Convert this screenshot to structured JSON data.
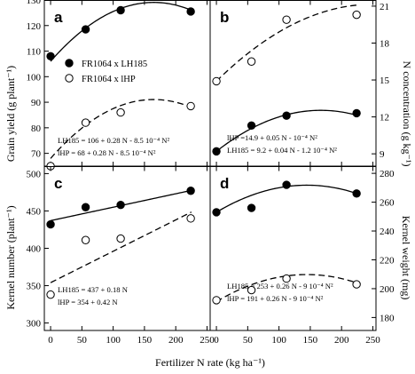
{
  "x_axis_title": "Fertilizer N rate (kg ha⁻¹)",
  "x_ticks": [
    0,
    50,
    100,
    150,
    200,
    250
  ],
  "y_left_top_title": "Grain yield (g plant⁻¹)",
  "y_right_top_title": "N concentration (g kg⁻¹)",
  "y_left_bottom_title": "Kernel number (plant⁻¹)",
  "y_right_bottom_title": "Kernel weight (mg)",
  "legend": [
    {
      "label": "FR1064 x LH185",
      "marker": "filled"
    },
    {
      "label": "FR1064 x lHP",
      "marker": "open"
    }
  ],
  "colors": {
    "filled": "#000000",
    "open": "#ffffff",
    "line": "#000000"
  },
  "chart_data": [
    {
      "type": "scatter",
      "panel": "a",
      "xlim": [
        -10,
        255
      ],
      "ylim": [
        65,
        130
      ],
      "y_ticks": [
        70,
        80,
        90,
        100,
        110,
        120,
        130
      ],
      "x": [
        0,
        56,
        112,
        224
      ],
      "series": [
        {
          "name": "FR1064 x LH185",
          "marker": "filled",
          "line": "solid",
          "values": [
            108,
            118.5,
            126,
            125.5
          ]
        },
        {
          "name": "FR1064 x lHP",
          "marker": "open",
          "line": "dashed",
          "values": [
            65,
            82,
            86,
            88.5
          ]
        }
      ],
      "fits": [
        {
          "series": "FR1064 x LH185",
          "a": 106,
          "b": 0.28,
          "c": -0.00085
        },
        {
          "series": "FR1064 x lHP",
          "a": 68,
          "b": 0.28,
          "c": -0.00085
        }
      ],
      "equations": [
        "LH185 = 106 + 0.28 N - 8.5 10⁻⁴ N²",
        "lHP = 68 + 0.28 N - 8.5 10⁻⁴ N²"
      ]
    },
    {
      "type": "scatter",
      "panel": "b",
      "xlim": [
        -10,
        255
      ],
      "ylim": [
        8,
        21.5
      ],
      "y_ticks": [
        9,
        12,
        15,
        18,
        21
      ],
      "x": [
        0,
        56,
        112,
        224
      ],
      "series": [
        {
          "name": "FR1064 x LH185",
          "marker": "filled",
          "line": "solid",
          "values": [
            9.2,
            11.3,
            12.1,
            12.3
          ]
        },
        {
          "name": "FR1064 x lHP",
          "marker": "open",
          "line": "dashed",
          "values": [
            14.9,
            16.5,
            19.9,
            20.3
          ]
        }
      ],
      "fits": [
        {
          "series": "FR1064 x LH185",
          "a": 9.2,
          "b": 0.04,
          "c": -0.00012
        },
        {
          "series": "FR1064 x lHP",
          "a": 14.9,
          "b": 0.05,
          "c": -0.0001
        }
      ],
      "equations": [
        "lHP =14.9 + 0.05 N - 10⁻⁴ N²",
        "LH185 = 9.2 + 0.04 N - 1.2 10⁻⁴ N²"
      ]
    },
    {
      "type": "scatter",
      "panel": "c",
      "xlim": [
        -10,
        255
      ],
      "ylim": [
        290,
        510
      ],
      "y_ticks": [
        300,
        350,
        400,
        450,
        500
      ],
      "x": [
        0,
        56,
        112,
        224
      ],
      "series": [
        {
          "name": "FR1064 x LH185",
          "marker": "filled",
          "line": "solid",
          "values": [
            432,
            455,
            458,
            477
          ]
        },
        {
          "name": "FR1064 x lHP",
          "marker": "open",
          "line": "dashed",
          "values": [
            338,
            411,
            413,
            440
          ]
        }
      ],
      "fits": [
        {
          "series": "FR1064 x LH185",
          "a": 437,
          "b": 0.18,
          "c": 0
        },
        {
          "series": "FR1064 x lHP",
          "a": 354,
          "b": 0.42,
          "c": 0
        }
      ],
      "equations": [
        "LH185 = 437 + 0.18 N",
        "lHP = 354 + 0.42 N"
      ]
    },
    {
      "type": "scatter",
      "panel": "d",
      "xlim": [
        -10,
        255
      ],
      "ylim": [
        171,
        285
      ],
      "y_ticks": [
        180,
        200,
        220,
        240,
        260,
        280
      ],
      "x": [
        0,
        56,
        112,
        224
      ],
      "series": [
        {
          "name": "FR1064 x LH185",
          "marker": "filled",
          "line": "solid",
          "values": [
            253,
            256,
            272,
            266
          ]
        },
        {
          "name": "FR1064 x lHP",
          "marker": "open",
          "line": "dashed",
          "values": [
            192,
            199,
            207,
            203
          ]
        }
      ],
      "fits": [
        {
          "series": "FR1064 x LH185",
          "a": 253,
          "b": 0.26,
          "c": -0.0009
        },
        {
          "series": "FR1064 x lHP",
          "a": 191,
          "b": 0.26,
          "c": -0.0009
        }
      ],
      "equations": [
        "LH185 = 253 + 0.26 N - 9 10⁻⁴ N²",
        "lHP = 191 + 0.26 N - 9 10⁻⁴ N²"
      ]
    }
  ]
}
